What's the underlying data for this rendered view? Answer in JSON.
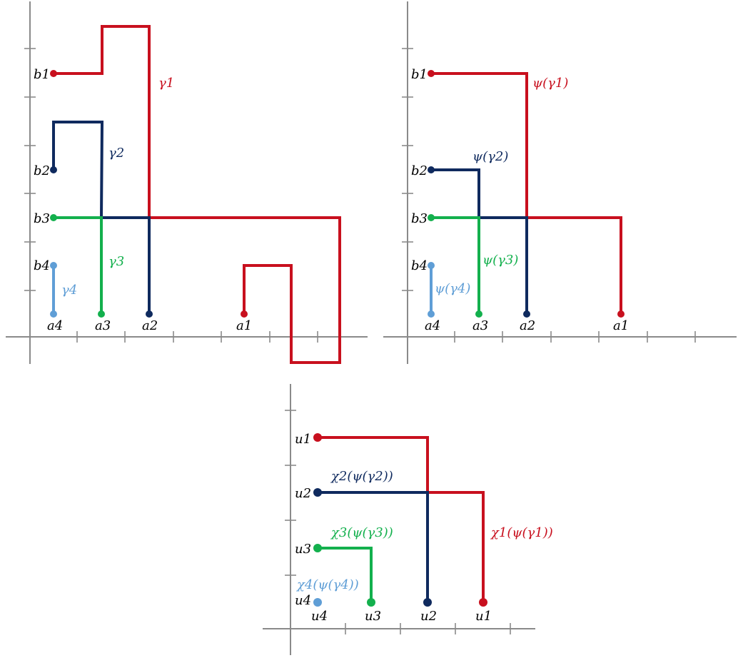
{
  "colors": {
    "red": "#c8101e",
    "navy": "#0f2a5e",
    "green": "#13b04d",
    "lightblue": "#5f9ed6",
    "axis": "#8a8a8a"
  },
  "panel1": {
    "left_labels": [
      "b1",
      "b2",
      "b3",
      "b4"
    ],
    "bottom_labels": [
      "a4",
      "a3",
      "a2",
      "a1"
    ],
    "path_labels": {
      "gamma1": "γ1",
      "gamma2": "γ2",
      "gamma3": "γ3",
      "gamma4": "γ4"
    }
  },
  "panel2": {
    "left_labels": [
      "b1",
      "b2",
      "b3",
      "b4"
    ],
    "bottom_labels": [
      "a4",
      "a3",
      "a2",
      "a1"
    ],
    "path_labels": {
      "psi1": "ψ(γ1)",
      "psi2": "ψ(γ2)",
      "psi3": "ψ(γ3)",
      "psi4": "ψ(γ4)"
    }
  },
  "panel3": {
    "left_labels": [
      "u1",
      "u2",
      "u3",
      "u4"
    ],
    "bottom_labels": [
      "u4",
      "u3",
      "u2",
      "u1"
    ],
    "path_labels": {
      "chi1": "χ1(ψ(γ1))",
      "chi2": "χ2(ψ(γ2))",
      "chi3": "χ3(ψ(γ3))",
      "chi4": "χ4(ψ(γ4))"
    }
  }
}
